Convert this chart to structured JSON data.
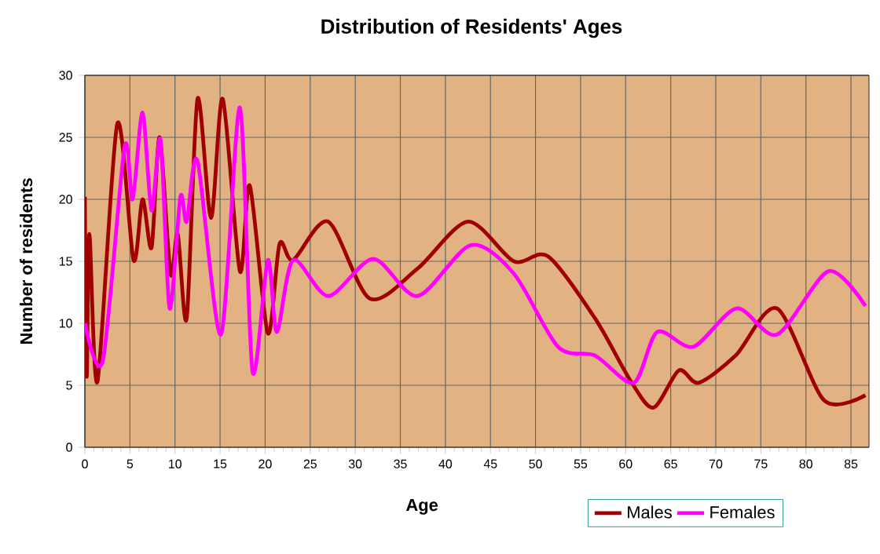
{
  "chart_data": {
    "type": "line",
    "title": "Distribution of Residents' Ages",
    "xlabel": "Age",
    "ylabel": "Number of residents",
    "xlim": [
      0,
      87
    ],
    "ylim": [
      0,
      30
    ],
    "xticks": [
      0,
      5,
      10,
      15,
      20,
      25,
      30,
      35,
      40,
      45,
      50,
      55,
      60,
      65,
      70,
      75,
      80,
      85
    ],
    "yticks": [
      0,
      5,
      10,
      15,
      20,
      25,
      30
    ],
    "grid": true,
    "legend": "bottom",
    "marker": "none",
    "line_style": "solid",
    "series": [
      {
        "name": "Males",
        "color": "#a00000",
        "x": [
          0,
          0.2,
          0.5,
          1.4,
          3.6,
          5.4,
          6.4,
          7.4,
          8.3,
          9.5,
          10.3,
          11.3,
          12.5,
          14,
          15.3,
          17.2,
          18.3,
          20.3,
          21.6,
          23.1,
          27,
          31.6,
          36.9,
          42.5,
          47.6,
          51.4,
          56.6,
          60.6,
          63.1,
          65.9,
          68.1,
          72.2,
          76.8,
          82,
          86.6
        ],
        "values": [
          20.2,
          5.7,
          17.2,
          5.3,
          26.1,
          15.1,
          20,
          16.1,
          25,
          14,
          17.2,
          10.4,
          28.1,
          18.5,
          28.1,
          14.2,
          21.1,
          9.2,
          16.4,
          15.1,
          18.2,
          12,
          14.4,
          18.2,
          15,
          15.4,
          10.4,
          5.3,
          3.2,
          6.2,
          5.2,
          7.4,
          11.2,
          3.8,
          4.2
        ]
      },
      {
        "name": "Females",
        "color": "#ff00ff",
        "x": [
          0,
          2,
          4.4,
          5.3,
          6.4,
          7.4,
          8.4,
          9.4,
          10.6,
          11.3,
          12.5,
          15.1,
          17.2,
          18.6,
          20.3,
          21.3,
          23.1,
          27,
          32,
          36.9,
          42.8,
          47.6,
          52.5,
          56.6,
          60.9,
          63.5,
          67.5,
          72.3,
          76.8,
          82.5,
          86.6
        ],
        "values": [
          10,
          7,
          24.2,
          20,
          27,
          19.1,
          24.8,
          11.2,
          20.2,
          18.2,
          23.1,
          9.1,
          27.4,
          6.1,
          15.1,
          9.3,
          15.1,
          12.2,
          15.2,
          12.2,
          16.3,
          14,
          8.1,
          7.4,
          5.2,
          9.3,
          8.1,
          11.2,
          9.1,
          14.2,
          11.4
        ]
      }
    ]
  }
}
